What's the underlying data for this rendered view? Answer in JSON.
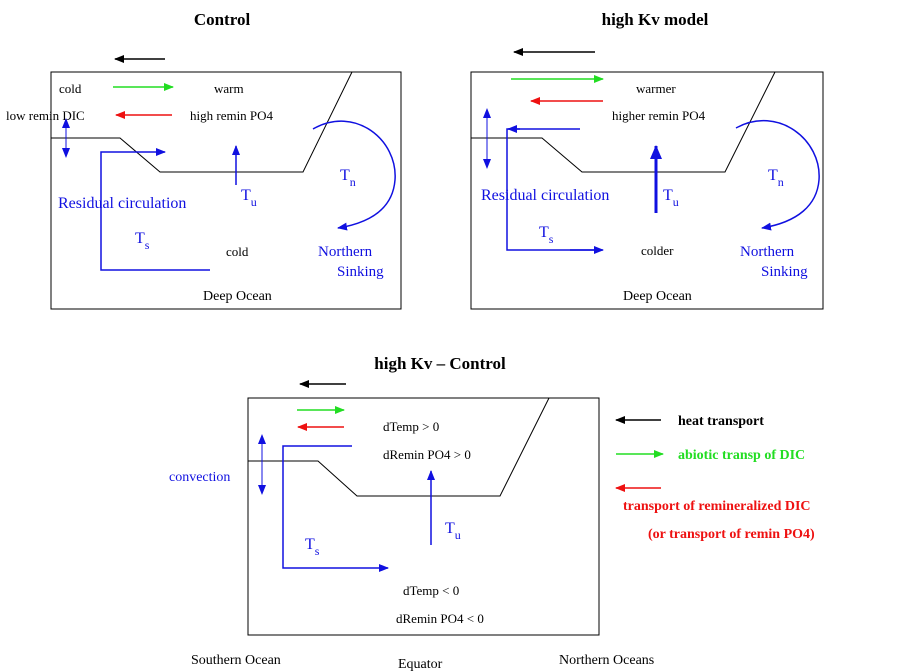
{
  "colors": {
    "blue": "#1010e0",
    "green": "#22dd22",
    "red": "#ee1111",
    "black": "#000000"
  },
  "panels": {
    "control": {
      "title": "Control",
      "cold_top": "cold",
      "warm": "warm",
      "low_remin": "low remin DIC",
      "high_remin": "high remin PO4",
      "residual": "Residual circulation",
      "t_n": "T",
      "t_n_sub": "n",
      "t_u": "T",
      "t_u_sub": "u",
      "t_s": "T",
      "t_s_sub": "s",
      "cold_bottom": "cold",
      "northern": "Northern",
      "sinking": "Sinking",
      "deep": "Deep Ocean"
    },
    "highkv": {
      "title": "high Kv model",
      "warmer": "warmer",
      "higher_remin": "higher remin PO4",
      "residual": "Residual circulation",
      "t_n": "T",
      "t_n_sub": "n",
      "t_u": "T",
      "t_u_sub": "u",
      "t_s": "T",
      "t_s_sub": "s",
      "colder": "colder",
      "northern": "Northern",
      "sinking": "Sinking",
      "deep": "Deep Ocean"
    },
    "diff": {
      "title": "high Kv – Control",
      "dtemp_pos": "dTemp > 0",
      "dremin_pos": "dRemin PO4 > 0",
      "convection": "convection",
      "t_u": "T",
      "t_u_sub": "u",
      "t_s": "T",
      "t_s_sub": "s",
      "dtemp_neg": "dTemp < 0",
      "dremin_neg": "dRemin PO4 < 0"
    }
  },
  "legend": {
    "heat": "heat transport",
    "abiotic": "abiotic transp of DIC",
    "remin": "transport of remineralized DIC",
    "remin2": "(or transport of remin PO4)"
  },
  "footer": {
    "southern": "Southern Ocean",
    "equator": "Equator",
    "northern": "Northern Oceans"
  }
}
